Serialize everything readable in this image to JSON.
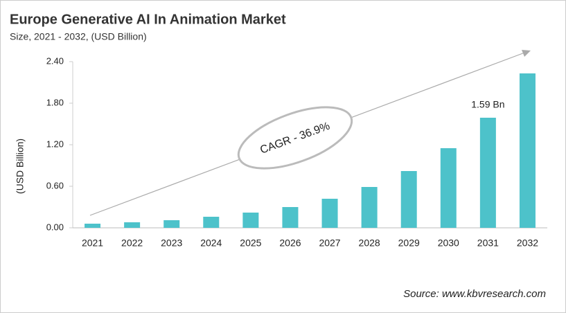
{
  "chart_data": {
    "type": "bar",
    "title": "Europe Generative AI In Animation Market",
    "subtitle": "Size, 2021 - 2032, (USD Billion)",
    "y_label": "(USD Billion)",
    "categories": [
      "2021",
      "2022",
      "2023",
      "2024",
      "2025",
      "2026",
      "2027",
      "2028",
      "2029",
      "2030",
      "2031",
      "2032"
    ],
    "values": [
      0.06,
      0.08,
      0.11,
      0.16,
      0.22,
      0.3,
      0.42,
      0.59,
      0.82,
      1.15,
      1.59,
      2.23
    ],
    "value_labels": [
      null,
      null,
      null,
      null,
      null,
      null,
      null,
      null,
      null,
      null,
      "1.59 Bn",
      null
    ],
    "color": "#4dc2ca",
    "ylim": [
      0,
      2.4
    ],
    "yticks": [
      {
        "value": 0,
        "label": "0.00"
      },
      {
        "value": 0.6,
        "label": "0.60"
      },
      {
        "value": 1.2,
        "label": "1.20"
      },
      {
        "value": 1.8,
        "label": "1.80"
      },
      {
        "value": 2.4,
        "label": "2.40"
      }
    ],
    "grid": false,
    "annotation": "CAGR - 36.9%",
    "source": "Source: www.kbvresearch.com"
  }
}
